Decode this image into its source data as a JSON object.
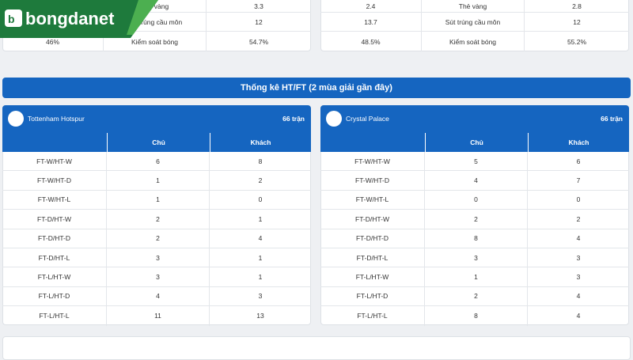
{
  "logo": "bongdanet",
  "top_stats": [
    {
      "rows": [
        {
          "label": "Thẻ vàng",
          "right": "3.3"
        },
        {
          "label": "Sút trúng cầu môn",
          "right": "12"
        },
        {
          "left": "46%",
          "label": "Kiểm soát bóng",
          "right": "54.7%"
        }
      ]
    },
    {
      "rows": [
        {
          "left": "2.4",
          "label": "Thẻ vàng",
          "right": "2.8"
        },
        {
          "left": "13.7",
          "label": "Sút trúng cầu môn",
          "right": "12"
        },
        {
          "left": "48.5%",
          "label": "Kiểm soát bóng",
          "right": "55.2%"
        }
      ]
    }
  ],
  "section_title": "Thống kê HT/FT (2 mùa giải gần đây)",
  "teams": [
    {
      "name": "Tottenham Hotspur",
      "matches": "66 trận",
      "columns": [
        "Chủ",
        "Khách"
      ],
      "rows": [
        {
          "label": "FT-W/HT-W",
          "home": 6,
          "away": 8
        },
        {
          "label": "FT-W/HT-D",
          "home": 1,
          "away": 2
        },
        {
          "label": "FT-W/HT-L",
          "home": 1,
          "away": 0
        },
        {
          "label": "FT-D/HT-W",
          "home": 2,
          "away": 1
        },
        {
          "label": "FT-D/HT-D",
          "home": 2,
          "away": 4
        },
        {
          "label": "FT-D/HT-L",
          "home": 3,
          "away": 1
        },
        {
          "label": "FT-L/HT-W",
          "home": 3,
          "away": 1
        },
        {
          "label": "FT-L/HT-D",
          "home": 4,
          "away": 3
        },
        {
          "label": "FT-L/HT-L",
          "home": 11,
          "away": 13
        }
      ]
    },
    {
      "name": "Crystal Palace",
      "matches": "66 trận",
      "columns": [
        "Chủ",
        "Khách"
      ],
      "rows": [
        {
          "label": "FT-W/HT-W",
          "home": 5,
          "away": 6
        },
        {
          "label": "FT-W/HT-D",
          "home": 4,
          "away": 7
        },
        {
          "label": "FT-W/HT-L",
          "home": 0,
          "away": 0
        },
        {
          "label": "FT-D/HT-W",
          "home": 2,
          "away": 2
        },
        {
          "label": "FT-D/HT-D",
          "home": 8,
          "away": 4
        },
        {
          "label": "FT-D/HT-L",
          "home": 3,
          "away": 3
        },
        {
          "label": "FT-L/HT-W",
          "home": 1,
          "away": 3
        },
        {
          "label": "FT-L/HT-D",
          "home": 2,
          "away": 4
        },
        {
          "label": "FT-L/HT-L",
          "home": 8,
          "away": 4
        }
      ]
    }
  ]
}
